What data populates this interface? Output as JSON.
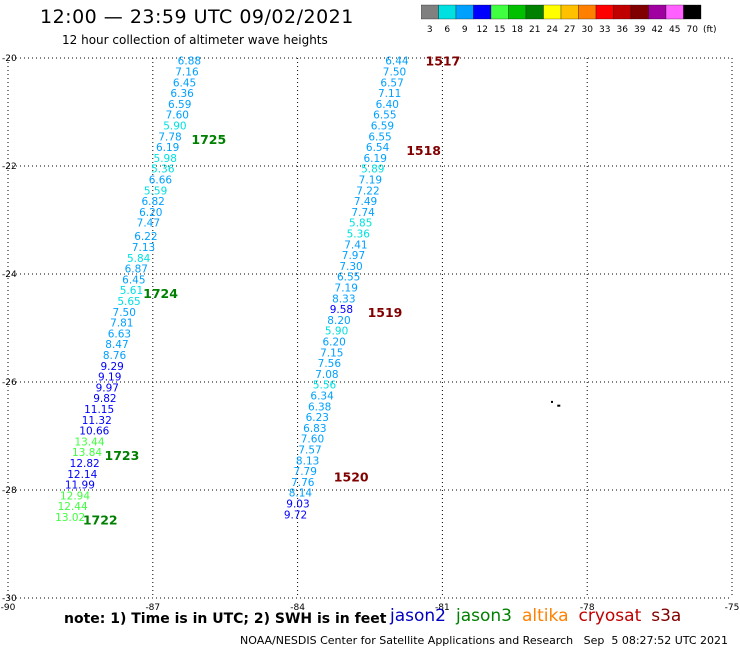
{
  "header": {
    "title": "12:00 — 23:59 UTC 09/02/2021",
    "subtitle": "12 hour collection of altimeter wave heights"
  },
  "color_scale": {
    "unit": "(ft)",
    "bins": [
      {
        "label": "3",
        "color": "#808080"
      },
      {
        "label": "6",
        "color": "#00e0e0"
      },
      {
        "label": "9",
        "color": "#00a0ff"
      },
      {
        "label": "12",
        "color": "#0000ff"
      },
      {
        "label": "15",
        "color": "#40ff40"
      },
      {
        "label": "18",
        "color": "#00c000"
      },
      {
        "label": "21",
        "color": "#008000"
      },
      {
        "label": "24",
        "color": "#ffff00"
      },
      {
        "label": "27",
        "color": "#ffc000"
      },
      {
        "label": "30",
        "color": "#ff8000"
      },
      {
        "label": "33",
        "color": "#ff0000"
      },
      {
        "label": "36",
        "color": "#c00000"
      },
      {
        "label": "39",
        "color": "#800000"
      },
      {
        "label": "42",
        "color": "#a000a0"
      },
      {
        "label": "45",
        "color": "#ff60ff"
      },
      {
        "label": "70",
        "color": "#000000"
      }
    ]
  },
  "axes": {
    "lon_ticks": [
      "-90",
      "-87",
      "-84",
      "-81",
      "-78",
      "-75"
    ],
    "lat_ticks": [
      "-20",
      "-22",
      "-24",
      "-26",
      "-28",
      "-30"
    ],
    "grid": true
  },
  "tracks": [
    {
      "name": "west",
      "points": [
        {
          "v": "6.88",
          "lon": -86.0,
          "lat": -20.05,
          "c": "#00a0ff"
        },
        {
          "v": "7.16",
          "lon": -86.05,
          "lat": -20.25,
          "c": "#00a0ff"
        },
        {
          "v": "6.45",
          "lon": -86.1,
          "lat": -20.45,
          "c": "#00a0ff"
        },
        {
          "v": "6.36",
          "lon": -86.15,
          "lat": -20.65,
          "c": "#00a0ff"
        },
        {
          "v": "6.59",
          "lon": -86.2,
          "lat": -20.85,
          "c": "#00a0ff"
        },
        {
          "v": "7.60",
          "lon": -86.25,
          "lat": -21.05,
          "c": "#00a0ff"
        },
        {
          "v": "5.90",
          "lon": -86.3,
          "lat": -21.25,
          "c": "#00e0e0"
        },
        {
          "v": "7.78",
          "lon": -86.4,
          "lat": -21.45,
          "c": "#00a0ff"
        },
        {
          "v": "6.19",
          "lon": -86.45,
          "lat": -21.65,
          "c": "#00a0ff"
        },
        {
          "v": "5.98",
          "lon": -86.5,
          "lat": -21.85,
          "c": "#00e0e0"
        },
        {
          "v": "5.36",
          "lon": -86.55,
          "lat": -22.05,
          "c": "#00e0e0"
        },
        {
          "v": "6.66",
          "lon": -86.6,
          "lat": -22.25,
          "c": "#00a0ff"
        },
        {
          "v": "5.59",
          "lon": -86.7,
          "lat": -22.45,
          "c": "#00e0e0"
        },
        {
          "v": "6.82",
          "lon": -86.75,
          "lat": -22.65,
          "c": "#00a0ff"
        },
        {
          "v": "6.20",
          "lon": -86.8,
          "lat": -22.85,
          "c": "#00a0ff"
        },
        {
          "v": "7.47",
          "lon": -86.85,
          "lat": -23.05,
          "c": "#00a0ff"
        },
        {
          "v": "6.22",
          "lon": -86.9,
          "lat": -23.3,
          "c": "#00a0ff"
        },
        {
          "v": "7.13",
          "lon": -86.95,
          "lat": -23.5,
          "c": "#00a0ff"
        },
        {
          "v": "5.84",
          "lon": -87.05,
          "lat": -23.7,
          "c": "#00e0e0"
        },
        {
          "v": "6.87",
          "lon": -87.1,
          "lat": -23.9,
          "c": "#00a0ff"
        },
        {
          "v": "6.45",
          "lon": -87.15,
          "lat": -24.1,
          "c": "#00a0ff"
        },
        {
          "v": "5.61",
          "lon": -87.2,
          "lat": -24.3,
          "c": "#00e0e0"
        },
        {
          "v": "5.65",
          "lon": -87.25,
          "lat": -24.5,
          "c": "#00e0e0"
        },
        {
          "v": "7.50",
          "lon": -87.35,
          "lat": -24.7,
          "c": "#00a0ff"
        },
        {
          "v": "7.81",
          "lon": -87.4,
          "lat": -24.9,
          "c": "#00a0ff"
        },
        {
          "v": "6.63",
          "lon": -87.45,
          "lat": -25.1,
          "c": "#00a0ff"
        },
        {
          "v": "8.47",
          "lon": -87.5,
          "lat": -25.3,
          "c": "#00a0ff"
        },
        {
          "v": "8.76",
          "lon": -87.55,
          "lat": -25.5,
          "c": "#00a0ff"
        },
        {
          "v": "9.29",
          "lon": -87.6,
          "lat": -25.7,
          "c": "#0000ff"
        },
        {
          "v": "9.19",
          "lon": -87.65,
          "lat": -25.9,
          "c": "#0000ff"
        },
        {
          "v": "9.97",
          "lon": -87.7,
          "lat": -26.1,
          "c": "#0000ff"
        },
        {
          "v": "9.82",
          "lon": -87.75,
          "lat": -26.3,
          "c": "#0000ff"
        },
        {
          "v": "11.15",
          "lon": -87.8,
          "lat": -26.5,
          "c": "#0000ff"
        },
        {
          "v": "11.32",
          "lon": -87.85,
          "lat": -26.7,
          "c": "#0000ff"
        },
        {
          "v": "10.66",
          "lon": -87.9,
          "lat": -26.9,
          "c": "#0000ff"
        },
        {
          "v": "13.44",
          "lon": -88.0,
          "lat": -27.1,
          "c": "#40ff40"
        },
        {
          "v": "13.84",
          "lon": -88.05,
          "lat": -27.3,
          "c": "#40ff40"
        },
        {
          "v": "12.82",
          "lon": -88.1,
          "lat": -27.5,
          "c": "#0000ff"
        },
        {
          "v": "12.14",
          "lon": -88.15,
          "lat": -27.7,
          "c": "#0000ff"
        },
        {
          "v": "11.99",
          "lon": -88.2,
          "lat": -27.9,
          "c": "#0000ff"
        },
        {
          "v": "12.94",
          "lon": -88.3,
          "lat": -28.1,
          "c": "#40ff40"
        },
        {
          "v": "12.44",
          "lon": -88.35,
          "lat": -28.3,
          "c": "#40ff40"
        },
        {
          "v": "13.02",
          "lon": -88.4,
          "lat": -28.5,
          "c": "#40ff40"
        }
      ]
    },
    {
      "name": "east",
      "points": [
        {
          "v": "6.44",
          "lon": -81.7,
          "lat": -20.05,
          "c": "#00a0ff"
        },
        {
          "v": "7.50",
          "lon": -81.75,
          "lat": -20.25,
          "c": "#00a0ff"
        },
        {
          "v": "6.57",
          "lon": -81.8,
          "lat": -20.45,
          "c": "#00a0ff"
        },
        {
          "v": "7.11",
          "lon": -81.85,
          "lat": -20.65,
          "c": "#00a0ff"
        },
        {
          "v": "6.40",
          "lon": -81.9,
          "lat": -20.85,
          "c": "#00a0ff"
        },
        {
          "v": "6.55",
          "lon": -81.95,
          "lat": -21.05,
          "c": "#00a0ff"
        },
        {
          "v": "6.59",
          "lon": -82.0,
          "lat": -21.25,
          "c": "#00a0ff"
        },
        {
          "v": "6.55",
          "lon": -82.05,
          "lat": -21.45,
          "c": "#00a0ff"
        },
        {
          "v": "6.54",
          "lon": -82.1,
          "lat": -21.65,
          "c": "#00a0ff"
        },
        {
          "v": "6.19",
          "lon": -82.15,
          "lat": -21.85,
          "c": "#00a0ff"
        },
        {
          "v": "5.89",
          "lon": -82.2,
          "lat": -22.05,
          "c": "#00e0e0"
        },
        {
          "v": "7.19",
          "lon": -82.25,
          "lat": -22.25,
          "c": "#00a0ff"
        },
        {
          "v": "7.22",
          "lon": -82.3,
          "lat": -22.45,
          "c": "#00a0ff"
        },
        {
          "v": "7.49",
          "lon": -82.35,
          "lat": -22.65,
          "c": "#00a0ff"
        },
        {
          "v": "7.74",
          "lon": -82.4,
          "lat": -22.85,
          "c": "#00a0ff"
        },
        {
          "v": "5.85",
          "lon": -82.45,
          "lat": -23.05,
          "c": "#00e0e0"
        },
        {
          "v": "5.36",
          "lon": -82.5,
          "lat": -23.25,
          "c": "#00e0e0"
        },
        {
          "v": "7.41",
          "lon": -82.55,
          "lat": -23.45,
          "c": "#00a0ff"
        },
        {
          "v": "7.97",
          "lon": -82.6,
          "lat": -23.65,
          "c": "#00a0ff"
        },
        {
          "v": "7.30",
          "lon": -82.65,
          "lat": -23.85,
          "c": "#00a0ff"
        },
        {
          "v": "6.55",
          "lon": -82.7,
          "lat": -24.05,
          "c": "#00a0ff"
        },
        {
          "v": "7.19",
          "lon": -82.75,
          "lat": -24.25,
          "c": "#00a0ff"
        },
        {
          "v": "8.33",
          "lon": -82.8,
          "lat": -24.45,
          "c": "#00a0ff"
        },
        {
          "v": "9.58",
          "lon": -82.85,
          "lat": -24.65,
          "c": "#0000ff"
        },
        {
          "v": "8.20",
          "lon": -82.9,
          "lat": -24.85,
          "c": "#00a0ff"
        },
        {
          "v": "5.90",
          "lon": -82.95,
          "lat": -25.05,
          "c": "#00e0e0"
        },
        {
          "v": "6.20",
          "lon": -83.0,
          "lat": -25.25,
          "c": "#00a0ff"
        },
        {
          "v": "7.15",
          "lon": -83.05,
          "lat": -25.45,
          "c": "#00a0ff"
        },
        {
          "v": "7.56",
          "lon": -83.1,
          "lat": -25.65,
          "c": "#00a0ff"
        },
        {
          "v": "7.08",
          "lon": -83.15,
          "lat": -25.85,
          "c": "#00a0ff"
        },
        {
          "v": "5.56",
          "lon": -83.2,
          "lat": -26.05,
          "c": "#00e0e0"
        },
        {
          "v": "6.34",
          "lon": -83.25,
          "lat": -26.25,
          "c": "#00a0ff"
        },
        {
          "v": "6.38",
          "lon": -83.3,
          "lat": -26.45,
          "c": "#00a0ff"
        },
        {
          "v": "6.23",
          "lon": -83.35,
          "lat": -26.65,
          "c": "#00a0ff"
        },
        {
          "v": "6.83",
          "lon": -83.4,
          "lat": -26.85,
          "c": "#00a0ff"
        },
        {
          "v": "7.60",
          "lon": -83.45,
          "lat": -27.05,
          "c": "#00a0ff"
        },
        {
          "v": "7.57",
          "lon": -83.5,
          "lat": -27.25,
          "c": "#00a0ff"
        },
        {
          "v": "8.13",
          "lon": -83.55,
          "lat": -27.45,
          "c": "#00a0ff"
        },
        {
          "v": "7.79",
          "lon": -83.6,
          "lat": -27.65,
          "c": "#00a0ff"
        },
        {
          "v": "7.76",
          "lon": -83.65,
          "lat": -27.85,
          "c": "#00a0ff"
        },
        {
          "v": "8.14",
          "lon": -83.7,
          "lat": -28.05,
          "c": "#00a0ff"
        },
        {
          "v": "9.03",
          "lon": -83.75,
          "lat": -28.25,
          "c": "#0000ff"
        },
        {
          "v": "9.72",
          "lon": -83.8,
          "lat": -28.45,
          "c": "#0000ff"
        }
      ]
    }
  ],
  "time_labels": [
    {
      "text": "1725",
      "lon": -86.2,
      "lat": -21.5,
      "c": "#008000"
    },
    {
      "text": "1724",
      "lon": -87.2,
      "lat": -24.35,
      "c": "#008000"
    },
    {
      "text": "1723",
      "lon": -88.0,
      "lat": -27.35,
      "c": "#008000"
    },
    {
      "text": "1722",
      "lon": -88.45,
      "lat": -28.55,
      "c": "#008000"
    },
    {
      "text": "1517",
      "lon": -81.35,
      "lat": -20.05,
      "c": "#800000"
    },
    {
      "text": "1518",
      "lon": -81.75,
      "lat": -21.7,
      "c": "#800000"
    },
    {
      "text": "1519",
      "lon": -82.55,
      "lat": -24.7,
      "c": "#800000"
    },
    {
      "text": "1520",
      "lon": -83.25,
      "lat": -27.75,
      "c": "#800000"
    }
  ],
  "note": "note: 1) Time is in UTC; 2) SWH is in feet",
  "satellites": [
    {
      "name": "jason2",
      "color": "#0000c0"
    },
    {
      "name": "jason3",
      "color": "#008000"
    },
    {
      "name": "altika",
      "color": "#ff8000"
    },
    {
      "name": "cryosat",
      "color": "#c00000"
    },
    {
      "name": "s3a",
      "color": "#800000"
    }
  ],
  "credit": "NOAA/NESDIS Center for Satellite Applications and Research   Sep  5 08:27:52 UTC 2021"
}
